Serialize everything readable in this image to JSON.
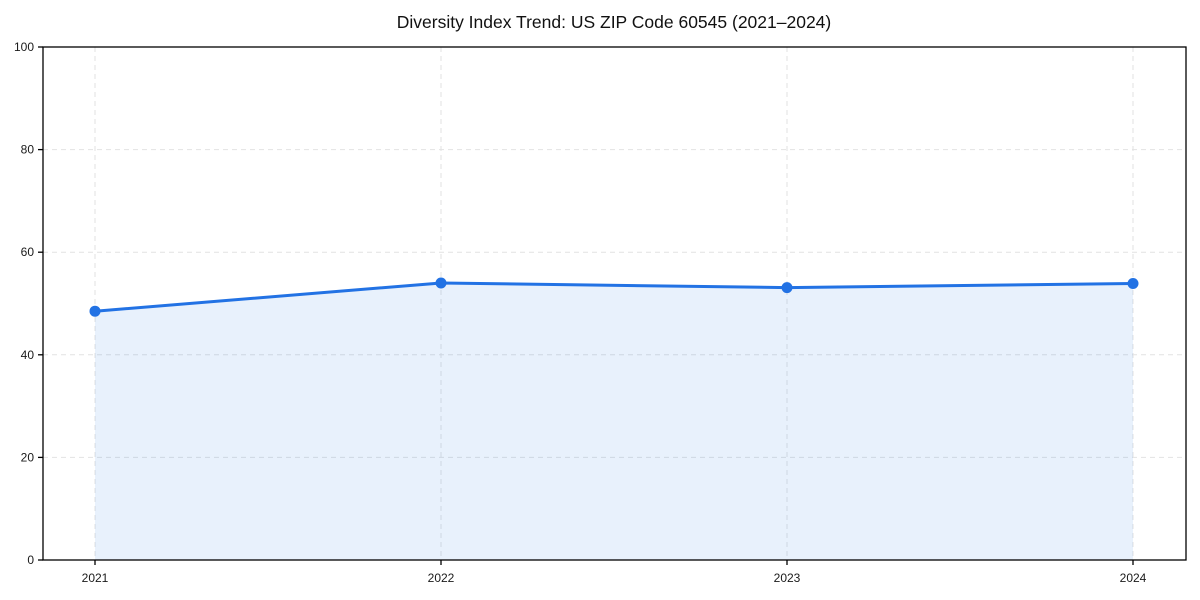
{
  "page": {
    "title": "Diversity Index Trend: US ZIP Code 60545 (2021–2024)"
  },
  "chart_data": {
    "type": "area",
    "title": "Diversity Index Trend: US ZIP Code 60545 (2021–2024)",
    "categories": [
      "2021",
      "2022",
      "2023",
      "2024"
    ],
    "series": [
      {
        "name": "Diversity Index",
        "values": [
          48.5,
          54.0,
          53.1,
          53.9
        ]
      }
    ],
    "xlabel": "",
    "ylabel": "",
    "ylim": [
      0,
      100
    ],
    "yticks": [
      0,
      20,
      40,
      60,
      80,
      100
    ],
    "grid": true,
    "grid_style": "dashed",
    "legend": false,
    "marker": "circle",
    "colors": {
      "line": "#2272e4",
      "marker": "#2272e4",
      "fill": "rgba(34,114,228,0.10)",
      "grid": "#e2e2e2",
      "axis": "#000000",
      "text": "#1a1a1a",
      "background": "#ffffff"
    }
  }
}
